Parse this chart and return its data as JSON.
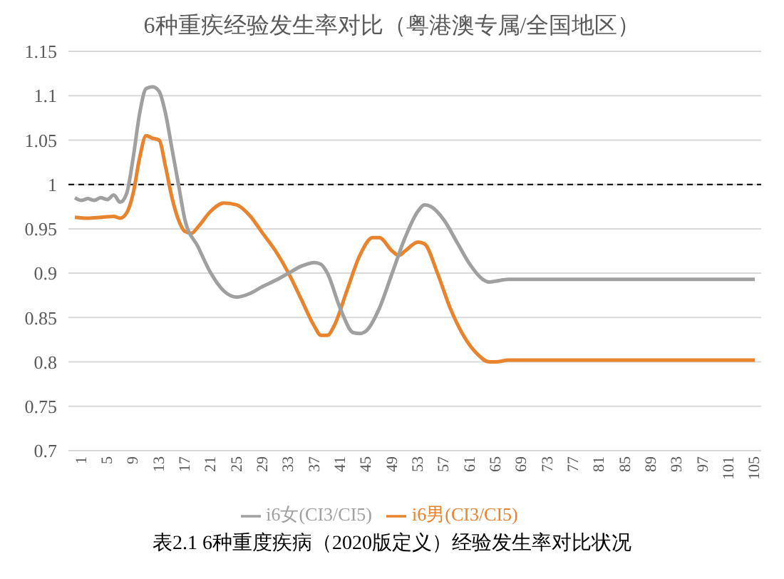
{
  "chart_data": {
    "type": "line",
    "title": "6种重疾经验发生率对比（粤港澳专属/全国地区）",
    "annotations": [
      "表2.1   6种重度疾病（2020版定义）经验发生率对比状况"
    ],
    "xlim": [
      0,
      107
    ],
    "xticks": [
      1,
      5,
      9,
      13,
      17,
      21,
      25,
      29,
      33,
      37,
      41,
      45,
      49,
      53,
      57,
      61,
      65,
      69,
      73,
      77,
      81,
      85,
      89,
      93,
      97,
      101,
      105
    ],
    "ylim": [
      0.7,
      1.15
    ],
    "yticks": [
      0.7,
      0.75,
      0.8,
      0.85,
      0.9,
      0.95,
      1,
      1.05,
      1.1,
      1.15
    ],
    "grid": "y",
    "legend": "bottom",
    "marker": "none",
    "line_style": "solid",
    "ref_lines": [
      {
        "axis": "y",
        "value": 1,
        "color": "#000000",
        "line_style": "dashed"
      }
    ],
    "series": [
      {
        "name": "i6男(CI3/CI5)",
        "color": "#e8832e",
        "x": [
          1,
          3,
          5,
          7,
          8,
          9,
          10,
          11,
          12,
          13,
          14,
          15,
          16,
          17,
          18,
          19,
          20,
          22,
          24,
          26,
          28,
          30,
          32,
          34,
          36,
          38,
          39,
          40,
          41,
          43,
          45,
          47,
          48,
          50,
          51,
          52,
          54,
          55,
          57,
          59,
          61,
          63,
          65,
          66,
          68,
          106
        ],
        "values": [
          0.963,
          0.962,
          0.963,
          0.964,
          0.962,
          0.968,
          0.99,
          1.03,
          1.055,
          1.052,
          1.05,
          1.02,
          0.985,
          0.96,
          0.947,
          0.945,
          0.952,
          0.97,
          0.979,
          0.977,
          0.965,
          0.945,
          0.925,
          0.9,
          0.87,
          0.84,
          0.83,
          0.83,
          0.84,
          0.88,
          0.92,
          0.94,
          0.94,
          0.925,
          0.92,
          0.925,
          0.935,
          0.933,
          0.9,
          0.86,
          0.83,
          0.81,
          0.8,
          0.8,
          0.802,
          0.802
        ]
      },
      {
        "name": "i6女(CI3/CI5)",
        "color": "#a0a0a0",
        "x": [
          1,
          2,
          3,
          4,
          5,
          6,
          7,
          8,
          9,
          10,
          11,
          12,
          13,
          14,
          15,
          16,
          17,
          18,
          20,
          22,
          24,
          26,
          28,
          30,
          32,
          34,
          36,
          38,
          39,
          40,
          42,
          44,
          45,
          46,
          48,
          50,
          52,
          54,
          55,
          56,
          58,
          60,
          62,
          64,
          65,
          66,
          68,
          106
        ],
        "values": [
          0.985,
          0.982,
          0.984,
          0.982,
          0.985,
          0.983,
          0.988,
          0.98,
          0.99,
          1.03,
          1.08,
          1.108,
          1.11,
          1.105,
          1.08,
          1.04,
          1.0,
          0.96,
          0.93,
          0.9,
          0.88,
          0.873,
          0.877,
          0.885,
          0.892,
          0.9,
          0.908,
          0.912,
          0.91,
          0.9,
          0.86,
          0.833,
          0.832,
          0.835,
          0.86,
          0.9,
          0.94,
          0.97,
          0.977,
          0.975,
          0.96,
          0.935,
          0.91,
          0.893,
          0.89,
          0.891,
          0.893,
          0.893
        ]
      }
    ]
  }
}
